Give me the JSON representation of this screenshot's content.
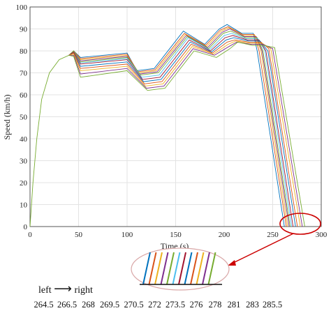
{
  "chart_data": {
    "type": "line",
    "title": "",
    "xlabel": "Time (s)",
    "ylabel": "Speed (km/h)",
    "xlim": [
      0,
      300
    ],
    "ylim": [
      0,
      100
    ],
    "xticks": [
      0,
      50,
      100,
      150,
      200,
      250,
      300
    ],
    "yticks": [
      0,
      10,
      20,
      30,
      40,
      50,
      60,
      70,
      80,
      90,
      100
    ],
    "grid": true,
    "common_start": [
      [
        0,
        0
      ],
      [
        3,
        20
      ],
      [
        7,
        40
      ],
      [
        12,
        58
      ],
      [
        20,
        70
      ],
      [
        30,
        76
      ],
      [
        40,
        78
      ]
    ],
    "legend_caption": "left",
    "legend_caption_right": "right",
    "stop_times": [
      "264.5",
      "266.5",
      "268",
      "269.5",
      "270.5",
      "272",
      "273.5",
      "276",
      "278",
      "281",
      "283",
      "285.5"
    ],
    "series": [
      {
        "color": "#0072bd",
        "values": [
          [
            40,
            78
          ],
          [
            45,
            80
          ],
          [
            52,
            77
          ],
          [
            100,
            79
          ],
          [
            110,
            71
          ],
          [
            128,
            72
          ],
          [
            158,
            89
          ],
          [
            180,
            83
          ],
          [
            195,
            90
          ],
          [
            203,
            92
          ],
          [
            218,
            88
          ],
          [
            230,
            88
          ],
          [
            234,
            80
          ],
          [
            262,
            0
          ]
        ]
      },
      {
        "color": "#d95319",
        "values": [
          [
            40,
            78
          ],
          [
            45,
            80
          ],
          [
            52,
            76.5
          ],
          [
            100,
            78.5
          ],
          [
            111,
            70.5
          ],
          [
            129,
            71.5
          ],
          [
            159,
            88
          ],
          [
            181,
            82.5
          ],
          [
            196,
            89.5
          ],
          [
            204,
            91
          ],
          [
            219,
            87.5
          ],
          [
            231,
            87.5
          ],
          [
            236,
            80
          ],
          [
            264,
            0
          ]
        ]
      },
      {
        "color": "#edb120",
        "values": [
          [
            40,
            78
          ],
          [
            45,
            80
          ],
          [
            52,
            76
          ],
          [
            100,
            78
          ],
          [
            112,
            70
          ],
          [
            130,
            71
          ],
          [
            160,
            87.5
          ],
          [
            182,
            82
          ],
          [
            197,
            89
          ],
          [
            205,
            90.5
          ],
          [
            220,
            87
          ],
          [
            232,
            87
          ],
          [
            238,
            80
          ],
          [
            265.5,
            0
          ]
        ]
      },
      {
        "color": "#7e2f8e",
        "values": [
          [
            40,
            78
          ],
          [
            45,
            80
          ],
          [
            52,
            75.5
          ],
          [
            100,
            77.5
          ],
          [
            113,
            69.5
          ],
          [
            131,
            70.5
          ],
          [
            161,
            87
          ],
          [
            183,
            81.5
          ],
          [
            198,
            88.5
          ],
          [
            206,
            90
          ],
          [
            221,
            86.5
          ],
          [
            233,
            86.5
          ],
          [
            239,
            80
          ],
          [
            267,
            0
          ]
        ]
      },
      {
        "color": "#77ac30",
        "values": [
          [
            40,
            78
          ],
          [
            45,
            80
          ],
          [
            52,
            75
          ],
          [
            100,
            77
          ],
          [
            114,
            69
          ],
          [
            132,
            70
          ],
          [
            162,
            86.5
          ],
          [
            184,
            81
          ],
          [
            199,
            88
          ],
          [
            207,
            89
          ],
          [
            222,
            86
          ],
          [
            234,
            86
          ],
          [
            240,
            80
          ],
          [
            268,
            0
          ]
        ]
      },
      {
        "color": "#4dbeee",
        "values": [
          [
            40,
            78
          ],
          [
            45,
            79.5
          ],
          [
            52,
            74.5
          ],
          [
            100,
            76.5
          ],
          [
            115,
            68
          ],
          [
            133,
            69
          ],
          [
            163,
            86
          ],
          [
            185,
            80.5
          ],
          [
            200,
            87
          ],
          [
            208,
            88
          ],
          [
            223,
            85.5
          ],
          [
            235,
            85.5
          ],
          [
            242,
            80
          ],
          [
            269.5,
            0
          ]
        ]
      },
      {
        "color": "#a2142f",
        "values": [
          [
            40,
            78
          ],
          [
            45,
            79.5
          ],
          [
            52,
            74
          ],
          [
            100,
            76
          ],
          [
            116,
            67
          ],
          [
            134,
            68
          ],
          [
            164,
            85
          ],
          [
            186,
            80
          ],
          [
            201,
            86
          ],
          [
            209,
            87
          ],
          [
            224,
            85
          ],
          [
            236,
            85
          ],
          [
            243,
            80
          ],
          [
            271,
            0
          ]
        ]
      },
      {
        "color": "#0072bd",
        "values": [
          [
            40,
            78
          ],
          [
            45,
            79
          ],
          [
            52,
            73
          ],
          [
            100,
            75
          ],
          [
            117,
            66
          ],
          [
            135,
            67
          ],
          [
            165,
            84
          ],
          [
            187,
            79.5
          ],
          [
            202,
            85
          ],
          [
            210,
            86
          ],
          [
            225,
            84.5
          ],
          [
            237,
            84.5
          ],
          [
            245,
            80
          ],
          [
            273.5,
            0
          ]
        ]
      },
      {
        "color": "#d95319",
        "values": [
          [
            40,
            78
          ],
          [
            45,
            79
          ],
          [
            52,
            72
          ],
          [
            100,
            74
          ],
          [
            118,
            65
          ],
          [
            136,
            66
          ],
          [
            166,
            83
          ],
          [
            188,
            79
          ],
          [
            203,
            84
          ],
          [
            211,
            85
          ],
          [
            226,
            84
          ],
          [
            238,
            84
          ],
          [
            246,
            81
          ],
          [
            275.5,
            0
          ]
        ]
      },
      {
        "color": "#edb120",
        "values": [
          [
            40,
            78
          ],
          [
            45,
            78.5
          ],
          [
            52,
            71
          ],
          [
            100,
            73
          ],
          [
            119,
            64
          ],
          [
            137,
            65
          ],
          [
            167,
            82
          ],
          [
            189,
            78.5
          ],
          [
            204,
            83
          ],
          [
            212,
            84.5
          ],
          [
            227,
            83.5
          ],
          [
            239,
            83.5
          ],
          [
            248,
            81
          ],
          [
            278.5,
            0
          ]
        ]
      },
      {
        "color": "#7e2f8e",
        "values": [
          [
            40,
            78
          ],
          [
            45,
            78
          ],
          [
            52,
            69.5
          ],
          [
            100,
            72
          ],
          [
            120,
            63
          ],
          [
            138,
            64
          ],
          [
            168,
            81
          ],
          [
            190,
            78
          ],
          [
            205,
            82
          ],
          [
            213,
            84
          ],
          [
            228,
            83
          ],
          [
            240,
            83
          ],
          [
            250,
            81
          ],
          [
            280.5,
            0
          ]
        ]
      },
      {
        "color": "#77ac30",
        "values": [
          [
            0,
            0
          ],
          [
            3,
            20
          ],
          [
            7,
            40
          ],
          [
            12,
            58
          ],
          [
            20,
            70
          ],
          [
            30,
            76
          ],
          [
            40,
            78
          ],
          [
            45,
            77.5
          ],
          [
            52,
            68
          ],
          [
            100,
            71
          ],
          [
            121,
            62
          ],
          [
            139,
            63
          ],
          [
            169,
            80
          ],
          [
            192,
            77
          ],
          [
            206,
            81
          ],
          [
            214,
            84
          ],
          [
            229,
            82.5
          ],
          [
            241,
            82.5
          ],
          [
            252,
            81.5
          ],
          [
            283,
            0
          ]
        ]
      }
    ]
  },
  "callout": {
    "lines": [
      "#0072bd",
      "#d95319",
      "#edb120",
      "#7e2f8e",
      "#77ac30",
      "#4dbeee",
      "#a2142f",
      "#0072bd",
      "#d95319",
      "#edb120",
      "#7e2f8e",
      "#77ac30"
    ],
    "ellipse_color": "#cc0000"
  }
}
